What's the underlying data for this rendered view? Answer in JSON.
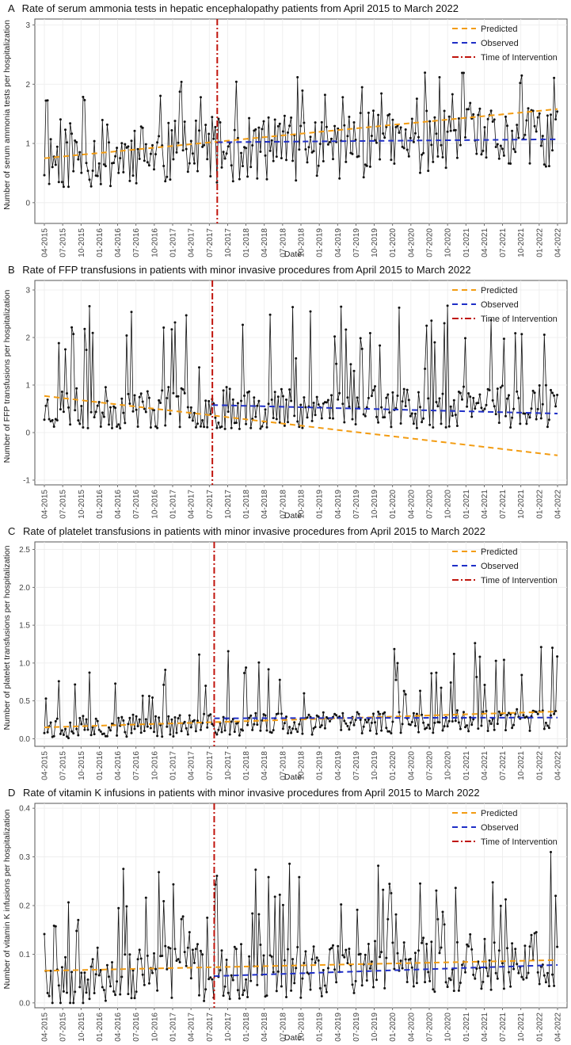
{
  "chart_data": [
    {
      "type": "line",
      "panel_letter": "A",
      "title": "Rate of serum ammonia tests in hepatic encephalopathy patients from April 2015 to March 2022",
      "xlabel": "Date",
      "ylabel": "Number of serum ammonia tests per hospitalization",
      "ylim": [
        -0.35,
        3.1
      ],
      "yticks": [
        "0",
        "1",
        "2",
        "3"
      ],
      "x_tick_labels": [
        "04-2015",
        "07-2015",
        "10-2015",
        "01-2016",
        "04-2016",
        "07-2016",
        "10-2016",
        "01-2017",
        "04-2017",
        "07-2017",
        "10-2017",
        "01-2018",
        "04-2018",
        "07-2018",
        "10-2018",
        "01-2019",
        "04-2019",
        "07-2019",
        "10-2019",
        "01-2020",
        "04-2020",
        "07-2020",
        "10-2020",
        "01-2021",
        "04-2021",
        "07-2021",
        "10-2021",
        "01-2022",
        "04-2022"
      ],
      "intervention_month_index": 28.3,
      "observed_rate_series": {
        "center_start": 0.75,
        "center_end": 1.1,
        "step": 0.8,
        "amplitude": 0.55,
        "spike_every": 11,
        "spike_height": 0.8,
        "seed": 11
      },
      "trend_predicted": {
        "start": 0.75,
        "end": 1.58
      },
      "trend_observed": {
        "start": 1.02,
        "end": 1.07
      },
      "legend_position": "top-right",
      "legend": [
        "Predicted",
        "Observed",
        "Time of Intervention"
      ],
      "grid": true
    },
    {
      "type": "line",
      "panel_letter": "B",
      "title": "Rate of FFP transfusions in patients with minor invasive procedures from April 2015 to March 2022",
      "xlabel": "Date",
      "ylabel": "Number of FFP transfusions per hospitalization",
      "ylim": [
        -1.1,
        3.2
      ],
      "yticks": [
        "-1",
        "0",
        "1",
        "2",
        "3"
      ],
      "x_tick_labels": [
        "04-2015",
        "07-2015",
        "10-2015",
        "01-2016",
        "04-2016",
        "07-2016",
        "10-2016",
        "01-2017",
        "04-2017",
        "07-2017",
        "10-2017",
        "01-2018",
        "04-2018",
        "07-2018",
        "10-2018",
        "01-2019",
        "04-2019",
        "07-2019",
        "10-2019",
        "01-2020",
        "04-2020",
        "07-2020",
        "10-2020",
        "01-2021",
        "04-2021",
        "07-2021",
        "10-2021",
        "01-2022",
        "04-2022"
      ],
      "intervention_month_index": 27.5,
      "observed_rate_series": {
        "center_start": 0.5,
        "center_end": 0.55,
        "step": 0.8,
        "amplitude": 0.45,
        "spike_every": 9,
        "spike_height": 1.5,
        "seed": 23
      },
      "trend_predicted": {
        "start": 0.77,
        "end": -0.48
      },
      "trend_observed": {
        "start": 0.58,
        "end": 0.4
      },
      "legend_position": "top-right",
      "legend": [
        "Predicted",
        "Observed",
        "Time of Intervention"
      ],
      "grid": true
    },
    {
      "type": "line",
      "panel_letter": "C",
      "title": "Rate of platelet transfusions in patients with minor invasive procedures from April 2015 to March 2022",
      "xlabel": "Date",
      "ylabel": "Number of platelet transfusions per hospitalization",
      "ylim": [
        -0.1,
        2.6
      ],
      "yticks": [
        "0.0",
        "0.5",
        "1.0",
        "1.5",
        "2.0",
        "2.5"
      ],
      "x_tick_labels": [
        "04-2015",
        "07-2015",
        "10-2015",
        "01-2016",
        "04-2016",
        "07-2016",
        "10-2016",
        "01-2017",
        "04-2017",
        "07-2017",
        "10-2017",
        "01-2018",
        "04-2018",
        "07-2018",
        "10-2018",
        "01-2019",
        "04-2019",
        "07-2019",
        "10-2019",
        "01-2020",
        "04-2020",
        "07-2020",
        "10-2020",
        "01-2021",
        "04-2021",
        "07-2021",
        "10-2021",
        "01-2022",
        "04-2022"
      ],
      "intervention_month_index": 27.8,
      "observed_rate_series": {
        "center_start": 0.15,
        "center_end": 0.25,
        "step": 0.8,
        "amplitude": 0.15,
        "spike_every": 9,
        "spike_height": 0.7,
        "seed": 37
      },
      "trend_predicted": {
        "start": 0.15,
        "end": 0.36
      },
      "trend_observed": {
        "start": 0.27,
        "end": 0.28
      },
      "legend_position": "top-right",
      "legend": [
        "Predicted",
        "Observed",
        "Time of Intervention"
      ],
      "grid": true
    },
    {
      "type": "line",
      "panel_letter": "D",
      "title": "Rate of vitamin K infusions in patients with minor invasive procedures from April 2015 to March 2022",
      "xlabel": "Date",
      "ylabel": "Number of vitamin K infusions per hospitalization",
      "ylim": [
        -0.01,
        0.41
      ],
      "yticks": [
        "0.0",
        "0.1",
        "0.2",
        "0.3",
        "0.4"
      ],
      "x_tick_labels": [
        "04-2015",
        "07-2015",
        "10-2015",
        "01-2016",
        "04-2016",
        "07-2016",
        "10-2016",
        "01-2017",
        "04-2017",
        "07-2017",
        "10-2017",
        "01-2018",
        "04-2018",
        "07-2018",
        "10-2018",
        "01-2019",
        "04-2019",
        "07-2019",
        "10-2019",
        "01-2020",
        "04-2020",
        "07-2020",
        "10-2020",
        "01-2021",
        "04-2021",
        "07-2021",
        "10-2021",
        "01-2022",
        "04-2022"
      ],
      "intervention_month_index": 27.8,
      "observed_rate_series": {
        "center_start": 0.05,
        "center_end": 0.09,
        "step": 0.8,
        "amplitude": 0.06,
        "spike_every": 8,
        "spike_height": 0.15,
        "seed": 53
      },
      "trend_predicted": {
        "start": 0.066,
        "end": 0.088
      },
      "trend_observed": {
        "start": 0.055,
        "end": 0.078
      },
      "legend_position": "top-right",
      "legend": [
        "Predicted",
        "Observed",
        "Time of Intervention"
      ],
      "grid": true
    }
  ],
  "colors": {
    "predicted": "#f39c12",
    "observed": "#1f2fc7",
    "intervention": "#c0140c",
    "series": "#111111",
    "grid": "#ebebeb",
    "panel_border": "#555555"
  }
}
